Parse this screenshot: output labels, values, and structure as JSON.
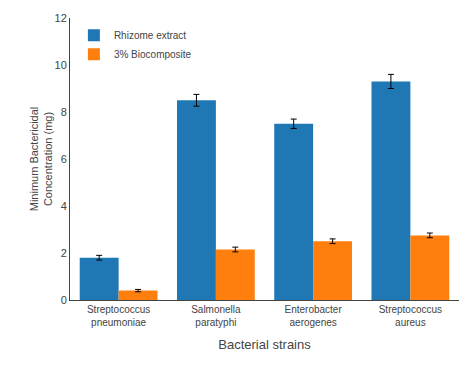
{
  "chart_data": {
    "type": "bar",
    "categories": [
      "Streptococcus\npneumoniae",
      "Salmonella\nparatyphi",
      "Enterobacter\naerogenes",
      "Streptococcus\naureus"
    ],
    "series": [
      {
        "name": "Rhizome extract",
        "values": [
          1.8,
          8.5,
          7.5,
          9.3
        ],
        "errors": [
          0.1,
          0.25,
          0.2,
          0.3
        ]
      },
      {
        "name": "3% Biocomposite",
        "values": [
          0.4,
          2.15,
          2.5,
          2.75
        ],
        "errors": [
          0.05,
          0.1,
          0.1,
          0.1
        ]
      }
    ],
    "xlabel": "Bacterial strains",
    "ylabel": "Minimum Bactericidal\nConcentration (mg)",
    "ylim": [
      0,
      12
    ],
    "yticks": [
      0,
      2,
      4,
      6,
      8,
      10,
      12
    ],
    "grid": false,
    "legend": "upper left"
  }
}
